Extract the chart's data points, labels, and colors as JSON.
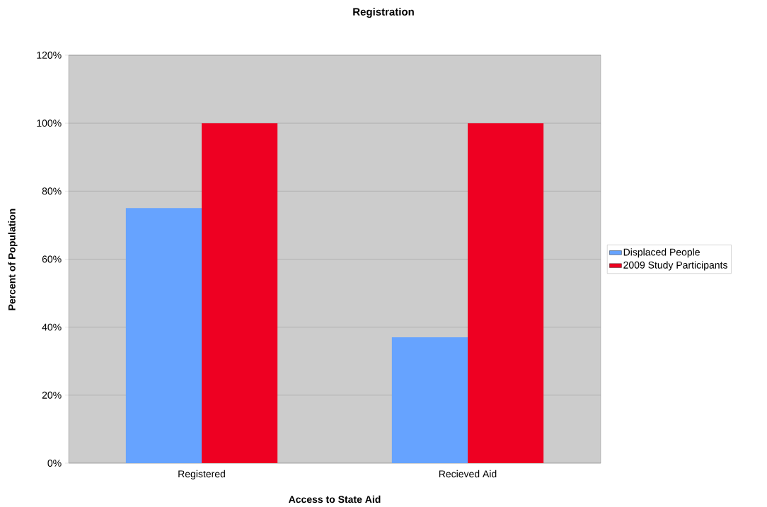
{
  "chart_data": {
    "type": "bar",
    "title": "Registration",
    "xlabel": "Access to State Aid",
    "ylabel": "Percent of Population",
    "categories": [
      "Registered",
      "Recieved Aid"
    ],
    "series": [
      {
        "name": "Displaced People",
        "color": "#66a3ff",
        "values": [
          75,
          37
        ]
      },
      {
        "name": "2009 Study Participants",
        "color": "#ee0022",
        "values": [
          100,
          100
        ]
      }
    ],
    "ylim": [
      0,
      120
    ],
    "yticks": [
      {
        "value": 0,
        "label": "0%"
      },
      {
        "value": 20,
        "label": "20%"
      },
      {
        "value": 40,
        "label": "40%"
      },
      {
        "value": 60,
        "label": "60%"
      },
      {
        "value": 80,
        "label": "80%"
      },
      {
        "value": 100,
        "label": "100%"
      },
      {
        "value": 120,
        "label": "120%"
      }
    ],
    "grid": "y",
    "legend": "right"
  }
}
